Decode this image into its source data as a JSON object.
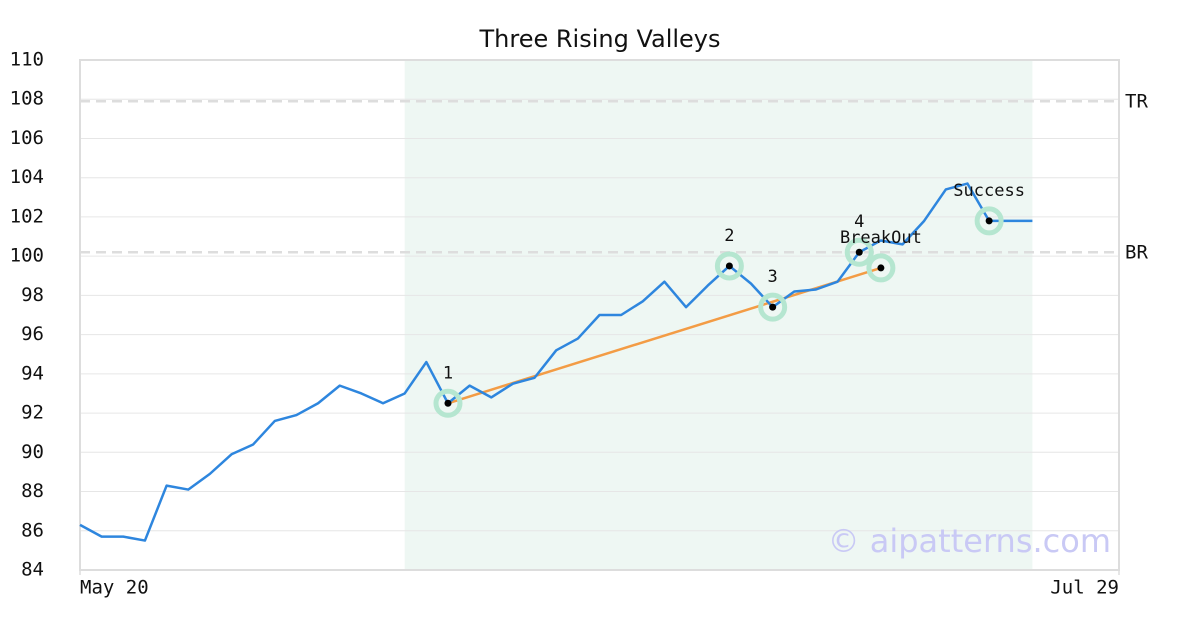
{
  "chart_data": {
    "type": "line",
    "title": "Three Rising Valleys",
    "x": [
      0,
      1,
      2,
      3,
      4,
      5,
      6,
      7,
      8,
      9,
      10,
      11,
      12,
      13,
      14,
      15,
      16,
      17,
      18,
      19,
      20,
      21,
      22,
      23,
      24,
      25,
      26,
      27,
      28,
      29,
      30,
      31,
      32,
      33,
      34,
      35,
      36,
      37,
      38,
      39,
      40,
      41,
      42,
      43,
      44
    ],
    "series": [
      {
        "color": "#2e86de",
        "values": [
          86.3,
          85.7,
          85.7,
          85.5,
          88.3,
          88.1,
          88.9,
          89.9,
          90.4,
          91.6,
          91.9,
          92.5,
          93.4,
          93.0,
          92.5,
          93.0,
          94.6,
          92.5,
          93.4,
          92.8,
          93.5,
          93.8,
          95.2,
          95.8,
          97.0,
          97.0,
          97.7,
          98.7,
          97.4,
          98.5,
          99.5,
          98.6,
          97.4,
          98.2,
          98.3,
          98.7,
          100.2,
          100.8,
          100.6,
          101.8,
          103.4,
          103.7,
          101.8,
          101.8,
          101.8
        ]
      }
    ],
    "xlim": [
      0,
      48
    ],
    "xticks": [
      {
        "value": 0,
        "label": "May 20"
      },
      {
        "value": 48,
        "label": "Jul 29"
      }
    ],
    "ylim": [
      84,
      110
    ],
    "yticks": [
      84,
      86,
      88,
      90,
      92,
      94,
      96,
      98,
      100,
      102,
      104,
      106,
      108,
      110
    ],
    "grid": true,
    "shaded_span": {
      "x": [
        15,
        44
      ],
      "color": "#eef7f3"
    },
    "hlines": [
      {
        "label": "TR",
        "value": 107.9
      },
      {
        "label": "BR",
        "value": 100.2
      }
    ],
    "trendline": {
      "color": "#f39c45",
      "x": [
        17,
        37
      ],
      "values": [
        92.5,
        99.4
      ]
    },
    "markers": [
      {
        "label": "1",
        "x": 17,
        "value": 92.5
      },
      {
        "label": "2",
        "x": 30,
        "value": 99.5
      },
      {
        "label": "3",
        "x": 32,
        "value": 97.4
      },
      {
        "label": "4",
        "x": 36,
        "value": 100.2
      },
      {
        "label": "BreakOut",
        "x": 37,
        "value": 99.4
      },
      {
        "label": "Success",
        "x": 42,
        "value": 101.8
      }
    ],
    "watermark": "© aipatterns.com"
  }
}
